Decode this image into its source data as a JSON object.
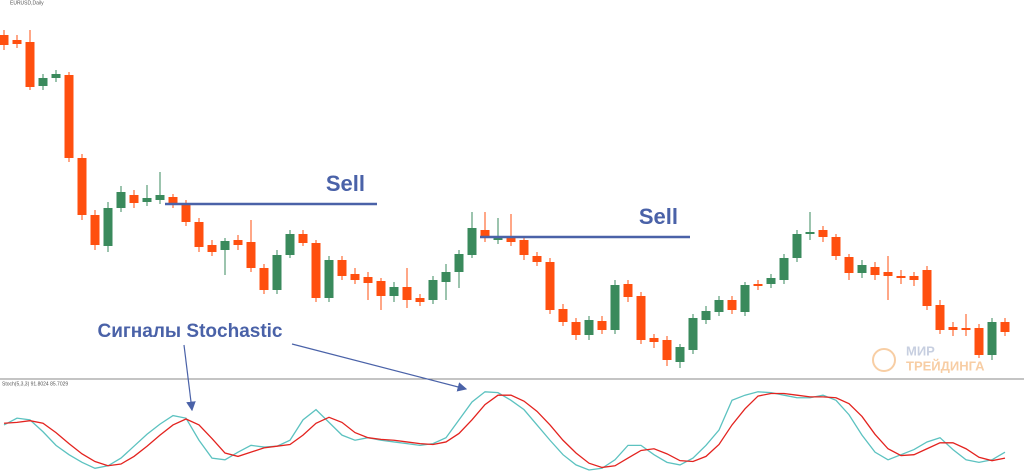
{
  "chart_data": [
    {
      "type": "candlestick",
      "label": "EURUSD,Daily",
      "up_color": "#3a8a5c",
      "down_color": "#ff4f0f",
      "ylim": [
        0,
        380
      ],
      "open": [
        345,
        340,
        338,
        294,
        302,
        305,
        222,
        165,
        134,
        172,
        185,
        178,
        180,
        183,
        177,
        158,
        135,
        130,
        140,
        138,
        112,
        90,
        125,
        146,
        137,
        82,
        120,
        106,
        103,
        99,
        84,
        93,
        82,
        80,
        98,
        108,
        125,
        150,
        140,
        144,
        140,
        124,
        118,
        71,
        58,
        45,
        59,
        50,
        96,
        84,
        42,
        40,
        18,
        30,
        60,
        68,
        80,
        68,
        96,
        96,
        100,
        122,
        146,
        150,
        143,
        123,
        107,
        113,
        108,
        104,
        104,
        110,
        75,
        53,
        52,
        52,
        25,
        58
      ],
      "high": [
        350,
        345,
        350,
        306,
        310,
        308,
        226,
        170,
        178,
        194,
        190,
        195,
        208,
        186,
        180,
        162,
        140,
        142,
        145,
        160,
        116,
        130,
        150,
        150,
        140,
        124,
        124,
        112,
        108,
        102,
        98,
        112,
        86,
        104,
        116,
        130,
        168,
        168,
        162,
        166,
        144,
        128,
        122,
        76,
        62,
        64,
        64,
        100,
        100,
        88,
        46,
        44,
        36,
        66,
        74,
        84,
        84,
        98,
        100,
        106,
        126,
        150,
        168,
        154,
        146,
        126,
        120,
        118,
        124,
        110,
        108,
        114,
        80,
        58,
        66,
        56,
        62,
        62
      ],
      "low": [
        330,
        332,
        290,
        290,
        298,
        218,
        160,
        130,
        128,
        168,
        172,
        174,
        176,
        172,
        154,
        128,
        124,
        105,
        130,
        108,
        86,
        86,
        122,
        134,
        78,
        78,
        100,
        96,
        80,
        70,
        78,
        72,
        74,
        76,
        80,
        92,
        122,
        138,
        136,
        134,
        120,
        114,
        66,
        54,
        40,
        40,
        46,
        46,
        78,
        36,
        32,
        14,
        12,
        26,
        56,
        64,
        66,
        64,
        90,
        92,
        96,
        118,
        140,
        138,
        120,
        100,
        102,
        100,
        80,
        96,
        94,
        70,
        46,
        44,
        44,
        22,
        20,
        44
      ],
      "close": [
        335,
        336,
        293,
        302,
        306,
        222,
        165,
        135,
        172,
        188,
        177,
        182,
        185,
        177,
        158,
        133,
        128,
        139,
        135,
        112,
        90,
        125,
        146,
        137,
        82,
        120,
        104,
        100,
        97,
        84,
        93,
        80,
        78,
        100,
        108,
        126,
        152,
        143,
        144,
        138,
        125,
        118,
        70,
        58,
        45,
        60,
        50,
        95,
        83,
        40,
        38,
        20,
        33,
        62,
        69,
        80,
        70,
        95,
        94,
        102,
        122,
        146,
        148,
        143,
        124,
        107,
        115,
        105,
        104,
        102,
        100,
        74,
        50,
        50,
        50,
        25,
        58,
        48
      ],
      "annotations": [
        {
          "text": "Sell",
          "level": 176
        },
        {
          "text": "Sell",
          "level": 143
        }
      ]
    },
    {
      "type": "line",
      "label": "Stoch(5,3,3) 91.8024 85.7029",
      "ylim": [
        0,
        100
      ],
      "series": [
        {
          "color": "#5cc2c0",
          "values": [
            53,
            61,
            59,
            45,
            29,
            18,
            9,
            2,
            5,
            14,
            28,
            42,
            54,
            64,
            61,
            35,
            14,
            12,
            21,
            29,
            27,
            28,
            35,
            59,
            71,
            56,
            41,
            35,
            38,
            35,
            33,
            31,
            29,
            31,
            38,
            59,
            80,
            92,
            91,
            82,
            71,
            53,
            35,
            18,
            6,
            0,
            2,
            12,
            29,
            29,
            18,
            9,
            6,
            14,
            29,
            47,
            82,
            88,
            92,
            91,
            88,
            85,
            85,
            88,
            82,
            65,
            41,
            21,
            12,
            18,
            24,
            33,
            38,
            24,
            12,
            9,
            12,
            21
          ]
        },
        {
          "color": "#e3231f",
          "values": [
            55,
            56,
            58,
            55,
            44,
            31,
            19,
            10,
            5,
            7,
            16,
            28,
            41,
            53,
            60,
            53,
            37,
            20,
            16,
            21,
            26,
            28,
            30,
            41,
            55,
            62,
            56,
            44,
            38,
            36,
            35,
            33,
            31,
            30,
            33,
            43,
            59,
            77,
            88,
            88,
            81,
            69,
            53,
            35,
            20,
            8,
            3,
            5,
            14,
            23,
            25,
            19,
            11,
            10,
            16,
            30,
            53,
            72,
            87,
            90,
            90,
            88,
            86,
            86,
            85,
            78,
            63,
            42,
            25,
            17,
            18,
            25,
            32,
            32,
            25,
            15,
            11,
            14
          ]
        }
      ]
    }
  ],
  "annotation": "Сигналы Stochastic",
  "watermark": [
    "МИР",
    "ТРЕЙДИНГА"
  ]
}
